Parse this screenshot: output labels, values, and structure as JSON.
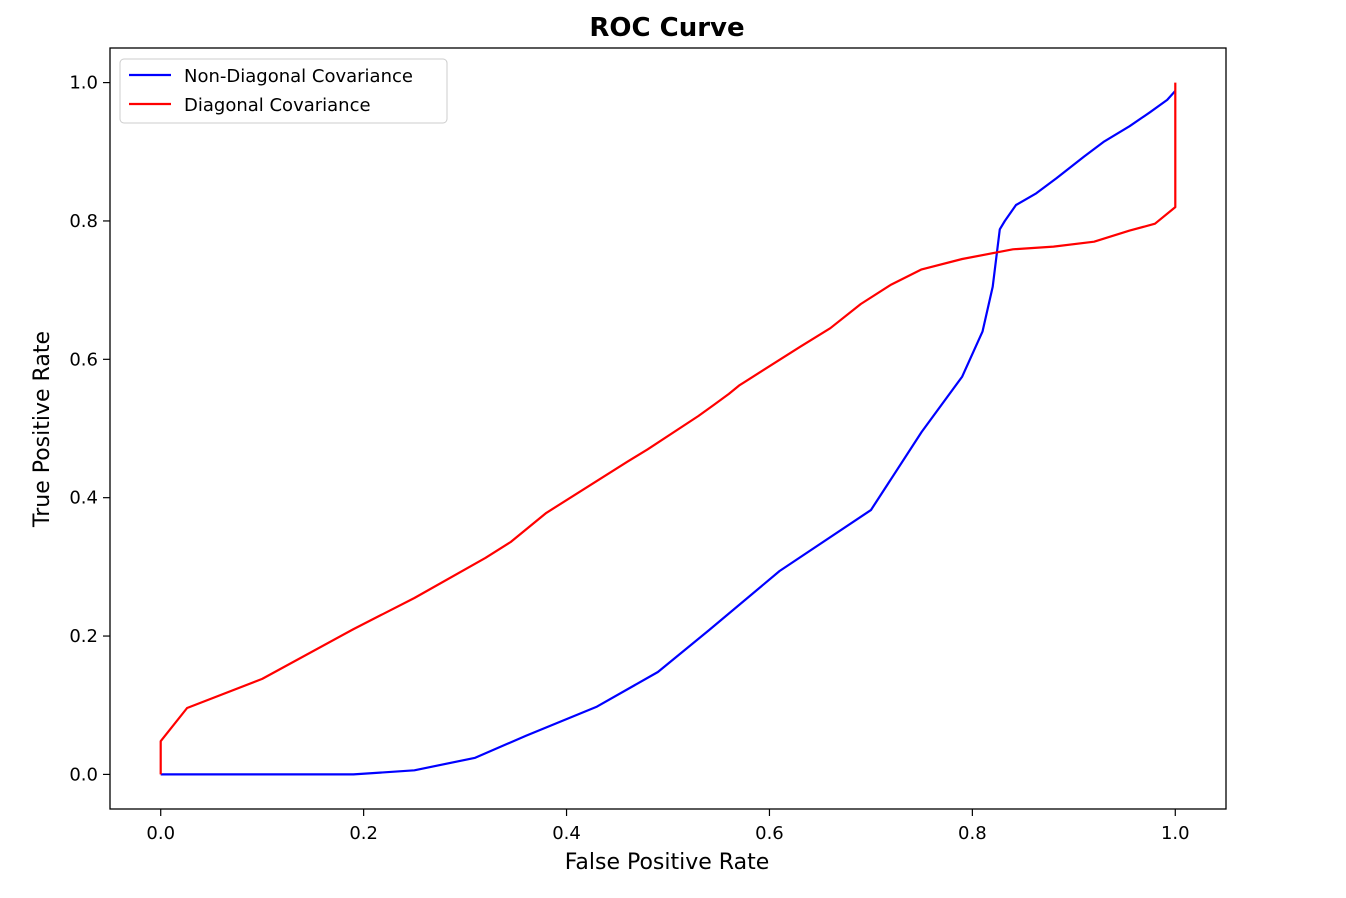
{
  "chart_data": {
    "type": "line",
    "title": "ROC Curve",
    "xlabel": "False Positive Rate",
    "ylabel": "True Positive Rate",
    "xlim": [
      -0.05,
      1.05
    ],
    "ylim": [
      -0.05,
      1.05
    ],
    "x_ticks": [
      "0.0",
      "0.2",
      "0.4",
      "0.6",
      "0.8",
      "1.0"
    ],
    "y_ticks": [
      "0.0",
      "0.2",
      "0.4",
      "0.6",
      "0.8",
      "1.0"
    ],
    "grid": false,
    "legend_position": "top-left",
    "series": [
      {
        "name": "Non-Diagonal Covariance",
        "color": "#0000ff",
        "points": [
          [
            0.0,
            0.0
          ],
          [
            0.19,
            0.0
          ],
          [
            0.25,
            0.006
          ],
          [
            0.31,
            0.024
          ],
          [
            0.36,
            0.056
          ],
          [
            0.43,
            0.098
          ],
          [
            0.49,
            0.148
          ],
          [
            0.54,
            0.208
          ],
          [
            0.61,
            0.294
          ],
          [
            0.7,
            0.382
          ],
          [
            0.75,
            0.495
          ],
          [
            0.79,
            0.575
          ],
          [
            0.81,
            0.64
          ],
          [
            0.82,
            0.705
          ],
          [
            0.827,
            0.788
          ],
          [
            0.832,
            0.8
          ],
          [
            0.843,
            0.823
          ],
          [
            0.863,
            0.84
          ],
          [
            0.883,
            0.862
          ],
          [
            0.91,
            0.893
          ],
          [
            0.93,
            0.915
          ],
          [
            0.955,
            0.937
          ],
          [
            0.975,
            0.957
          ],
          [
            0.992,
            0.975
          ],
          [
            1.0,
            0.988
          ]
        ]
      },
      {
        "name": "Diagonal Covariance",
        "color": "#ff0000",
        "points": [
          [
            0.0,
            0.0
          ],
          [
            0.0,
            0.048
          ],
          [
            0.026,
            0.096
          ],
          [
            0.1,
            0.138
          ],
          [
            0.19,
            0.21
          ],
          [
            0.25,
            0.255
          ],
          [
            0.32,
            0.313
          ],
          [
            0.345,
            0.336
          ],
          [
            0.38,
            0.378
          ],
          [
            0.46,
            0.452
          ],
          [
            0.48,
            0.47
          ],
          [
            0.53,
            0.518
          ],
          [
            0.545,
            0.534
          ],
          [
            0.56,
            0.55
          ],
          [
            0.57,
            0.562
          ],
          [
            0.63,
            0.618
          ],
          [
            0.66,
            0.645
          ],
          [
            0.69,
            0.68
          ],
          [
            0.72,
            0.708
          ],
          [
            0.75,
            0.73
          ],
          [
            0.79,
            0.745
          ],
          [
            0.84,
            0.759
          ],
          [
            0.88,
            0.763
          ],
          [
            0.92,
            0.77
          ],
          [
            0.955,
            0.786
          ],
          [
            0.98,
            0.796
          ],
          [
            1.0,
            0.82
          ],
          [
            1.0,
            1.0
          ]
        ]
      }
    ]
  }
}
